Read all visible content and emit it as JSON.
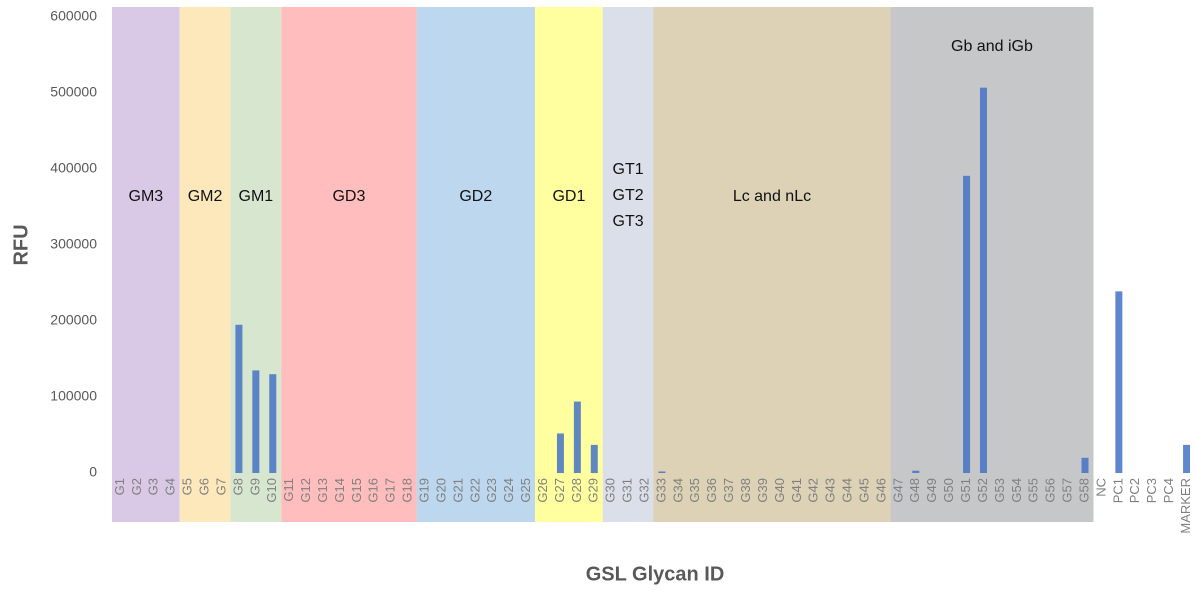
{
  "chart_data": {
    "type": "bar",
    "x_label": "GSL Glycan ID",
    "y_label": "RFU",
    "categories": [
      "G1",
      "G2",
      "G3",
      "G4",
      "G5",
      "G6",
      "G7",
      "G8",
      "G9",
      "G10",
      "G11",
      "G12",
      "G13",
      "G14",
      "G15",
      "G16",
      "G17",
      "G18",
      "G19",
      "G20",
      "G21",
      "G22",
      "G23",
      "G24",
      "G25",
      "G26",
      "G27",
      "G28",
      "G29",
      "G30",
      "G31",
      "G32",
      "G33",
      "G34",
      "G35",
      "G36",
      "G37",
      "G38",
      "G39",
      "G40",
      "G41",
      "G42",
      "G43",
      "G44",
      "G45",
      "G46",
      "G47",
      "G48",
      "G49",
      "G50",
      "G51",
      "G52",
      "G53",
      "G54",
      "G55",
      "G56",
      "G57",
      "G58",
      "NC",
      "PC1",
      "PC2",
      "PC3",
      "PC4",
      "MARKER"
    ],
    "values": [
      0,
      0,
      0,
      0,
      0,
      0,
      0,
      195000,
      135000,
      130000,
      0,
      0,
      0,
      0,
      0,
      0,
      0,
      0,
      0,
      0,
      0,
      0,
      0,
      0,
      0,
      0,
      52000,
      94000,
      37000,
      0,
      0,
      0,
      2000,
      0,
      0,
      0,
      0,
      0,
      0,
      0,
      0,
      0,
      0,
      0,
      0,
      0,
      0,
      3000,
      0,
      0,
      391000,
      507000,
      0,
      0,
      0,
      0,
      0,
      20000,
      0,
      239000,
      0,
      0,
      0,
      37000
    ],
    "color": "#4472c4",
    "ylim": [
      0,
      600000
    ],
    "yticks": [
      0,
      100000,
      200000,
      300000,
      400000,
      500000,
      600000
    ],
    "grid": false,
    "regions": [
      {
        "label": [
          "GM3"
        ],
        "from": "G1",
        "to": "G4",
        "color": "#d9c9e6"
      },
      {
        "label": [
          "GM2"
        ],
        "from": "G5",
        "to": "G7",
        "color": "#fde8bc"
      },
      {
        "label": [
          "GM1"
        ],
        "from": "G8",
        "to": "G10",
        "color": "#d7e6cf"
      },
      {
        "label": [
          "GD3"
        ],
        "from": "G11",
        "to": "G18",
        "color": "#ffbdbd"
      },
      {
        "label": [
          "GD2"
        ],
        "from": "G19",
        "to": "G25",
        "color": "#bdd7ee"
      },
      {
        "label": [
          "GD1"
        ],
        "from": "G26",
        "to": "G29",
        "color": "#ffff9f"
      },
      {
        "label": [
          "GT1",
          "GT2",
          "GT3"
        ],
        "from": "G30",
        "to": "G32",
        "color": "#dadfea"
      },
      {
        "label": [
          "Lc and nLc"
        ],
        "from": "G33",
        "to": "G46",
        "color": "#ddd1b6"
      },
      {
        "label": [
          "Gb and iGb"
        ],
        "from": "G47",
        "to": "G58",
        "color": "#c6c7c9"
      }
    ]
  }
}
